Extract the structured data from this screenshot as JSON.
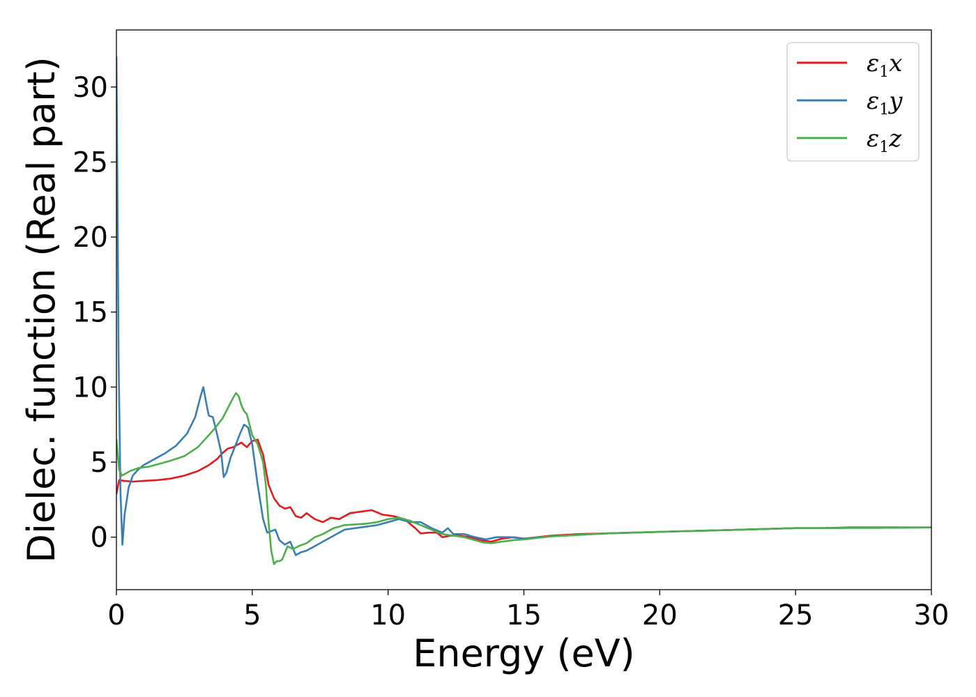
{
  "chart_data": {
    "type": "line",
    "xlabel": "Energy (eV)",
    "ylabel": "Dielec. function (Real part)",
    "xlim": [
      0,
      30
    ],
    "ylim": [
      -3.5,
      33.8
    ],
    "xticks": [
      0,
      5,
      10,
      15,
      20,
      25,
      30
    ],
    "yticks": [
      0,
      5,
      10,
      15,
      20,
      25,
      30
    ],
    "grid": false,
    "legend_position": "top-right",
    "series": [
      {
        "name": "ε1x",
        "legend_base": "ε",
        "legend_sub": "1",
        "legend_suffix": "x",
        "color": "#e41a1c",
        "x": [
          0,
          0.1,
          0.3,
          0.6,
          1.0,
          1.5,
          2.0,
          2.5,
          3.0,
          3.4,
          3.7,
          3.9,
          4.1,
          4.3,
          4.6,
          4.8,
          5.0,
          5.2,
          5.4,
          5.6,
          5.8,
          6.0,
          6.2,
          6.4,
          6.6,
          6.8,
          7.0,
          7.3,
          7.6,
          7.9,
          8.2,
          8.6,
          9.0,
          9.4,
          9.8,
          10.2,
          10.6,
          11.0,
          11.2,
          11.5,
          11.8,
          12.0,
          12.3,
          12.6,
          13.0,
          13.4,
          13.8,
          14.2,
          14.6,
          15.0,
          16.0,
          17.0,
          18.0,
          19.0,
          20.0,
          21.0,
          22.0,
          23.0,
          24.0,
          25.0,
          26.0,
          27.0,
          28.0,
          29.0,
          30.0
        ],
        "y": [
          2.9,
          3.8,
          3.75,
          3.7,
          3.75,
          3.8,
          3.9,
          4.1,
          4.4,
          4.8,
          5.2,
          5.6,
          5.9,
          6.0,
          6.3,
          6.0,
          6.4,
          6.5,
          5.5,
          3.5,
          2.6,
          2.1,
          1.9,
          2.0,
          1.4,
          1.3,
          1.6,
          1.2,
          1.0,
          1.3,
          1.2,
          1.6,
          1.7,
          1.8,
          1.5,
          1.4,
          1.2,
          0.6,
          0.25,
          0.3,
          0.3,
          0.0,
          0.1,
          0.1,
          0.0,
          -0.2,
          -0.3,
          -0.1,
          0.0,
          -0.1,
          0.1,
          0.2,
          0.25,
          0.3,
          0.35,
          0.4,
          0.45,
          0.5,
          0.55,
          0.6,
          0.6,
          0.65,
          0.65,
          0.65,
          0.65
        ]
      },
      {
        "name": "ε1y",
        "legend_base": "ε",
        "legend_sub": "1",
        "legend_suffix": "y",
        "color": "#377eb8",
        "x": [
          0,
          0.03,
          0.08,
          0.15,
          0.22,
          0.3,
          0.45,
          0.6,
          0.8,
          1.0,
          1.4,
          1.8,
          2.2,
          2.6,
          2.9,
          3.1,
          3.2,
          3.3,
          3.4,
          3.55,
          3.7,
          3.85,
          3.95,
          4.05,
          4.2,
          4.4,
          4.55,
          4.7,
          4.85,
          5.0,
          5.2,
          5.4,
          5.55,
          5.7,
          5.85,
          6.0,
          6.2,
          6.4,
          6.6,
          6.8,
          7.0,
          7.3,
          7.6,
          8.0,
          8.4,
          8.8,
          9.2,
          9.6,
          10.0,
          10.4,
          10.8,
          11.2,
          11.6,
          12.0,
          12.2,
          12.4,
          12.8,
          13.2,
          13.6,
          14.0,
          14.5,
          15.0,
          16.0,
          17.0,
          18.0,
          19.0,
          20.0,
          21.0,
          22.0,
          23.0,
          24.0,
          25.0,
          26.0,
          27.0,
          28.0,
          29.0,
          30.0
        ],
        "y": [
          32.0,
          25.0,
          12.0,
          3.0,
          -0.5,
          1.5,
          3.3,
          4.1,
          4.5,
          4.8,
          5.2,
          5.6,
          6.1,
          6.9,
          8.0,
          9.4,
          10.0,
          9.0,
          8.1,
          8.0,
          6.9,
          5.7,
          4.0,
          4.3,
          5.3,
          6.2,
          6.9,
          7.5,
          7.3,
          6.2,
          3.5,
          1.2,
          0.3,
          0.4,
          0.5,
          -0.2,
          -0.5,
          -0.3,
          -1.2,
          -1.0,
          -0.9,
          -0.6,
          -0.3,
          0.1,
          0.5,
          0.6,
          0.7,
          0.8,
          1.0,
          1.2,
          1.0,
          1.0,
          0.6,
          0.3,
          0.6,
          0.2,
          0.2,
          0.0,
          -0.15,
          0.0,
          0.0,
          -0.1,
          0.05,
          0.15,
          0.25,
          0.3,
          0.35,
          0.4,
          0.45,
          0.5,
          0.55,
          0.6,
          0.6,
          0.62,
          0.62,
          0.63,
          0.65
        ]
      },
      {
        "name": "ε1z",
        "legend_base": "ε",
        "legend_sub": "1",
        "legend_suffix": "z",
        "color": "#4daf4a",
        "x": [
          0,
          0.05,
          0.1,
          0.2,
          0.3,
          0.5,
          0.8,
          1.2,
          1.6,
          2.0,
          2.5,
          3.0,
          3.3,
          3.6,
          3.9,
          4.1,
          4.3,
          4.4,
          4.5,
          4.6,
          4.7,
          4.8,
          4.9,
          5.0,
          5.2,
          5.4,
          5.5,
          5.6,
          5.7,
          5.8,
          5.9,
          6.0,
          6.1,
          6.3,
          6.5,
          6.7,
          7.0,
          7.3,
          7.6,
          8.0,
          8.4,
          8.8,
          9.2,
          9.6,
          10.0,
          10.4,
          10.8,
          11.2,
          11.6,
          12.0,
          12.4,
          12.8,
          13.2,
          13.5,
          13.8,
          14.2,
          14.6,
          15.0,
          16.0,
          17.0,
          18.0,
          19.0,
          20.0,
          21.0,
          22.0,
          23.0,
          24.0,
          25.0,
          26.0,
          27.0,
          28.0,
          29.0,
          30.0
        ],
        "y": [
          6.5,
          5.5,
          4.5,
          4.1,
          4.2,
          4.4,
          4.6,
          4.7,
          4.9,
          5.1,
          5.4,
          6.0,
          6.6,
          7.2,
          7.9,
          8.6,
          9.3,
          9.6,
          9.4,
          8.8,
          8.4,
          8.2,
          7.5,
          6.8,
          6.2,
          5.0,
          3.5,
          1.0,
          -0.9,
          -1.8,
          -1.6,
          -1.6,
          -1.5,
          -0.6,
          -0.8,
          -0.6,
          -0.4,
          0.0,
          0.2,
          0.6,
          0.8,
          0.85,
          0.9,
          1.0,
          1.2,
          1.3,
          1.1,
          0.8,
          0.5,
          0.2,
          0.1,
          0.0,
          -0.2,
          -0.35,
          -0.4,
          -0.3,
          -0.2,
          -0.15,
          0.05,
          0.15,
          0.25,
          0.3,
          0.35,
          0.4,
          0.45,
          0.5,
          0.55,
          0.6,
          0.6,
          0.62,
          0.62,
          0.63,
          0.65
        ]
      }
    ]
  }
}
